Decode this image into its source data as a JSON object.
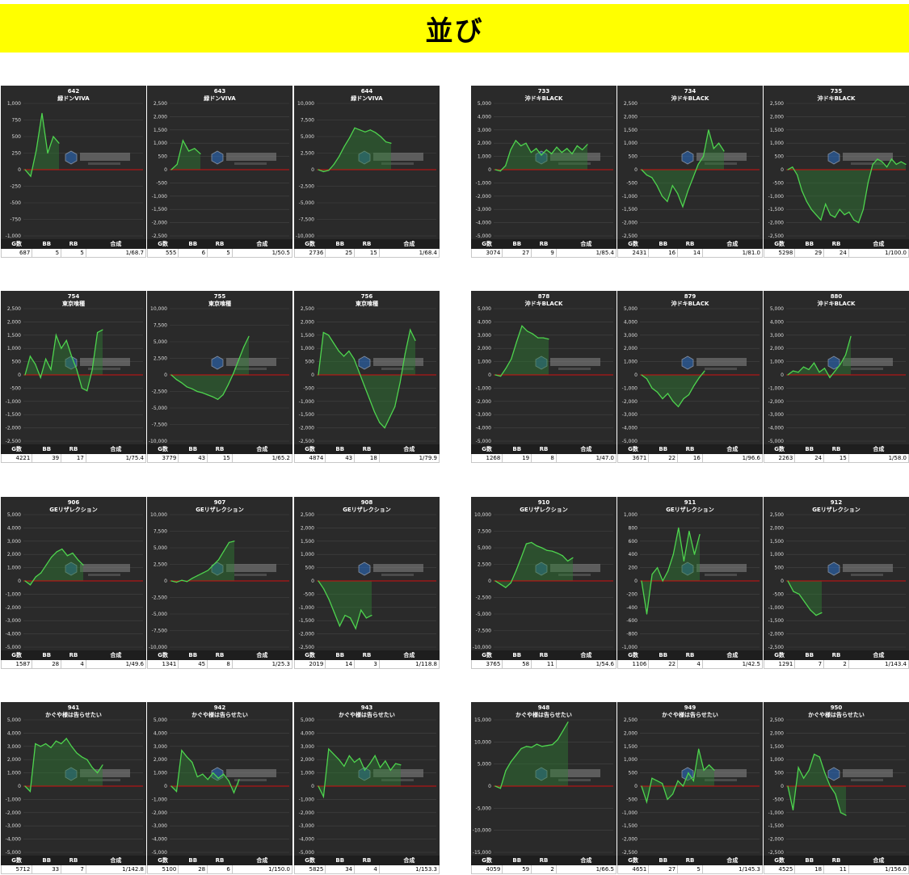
{
  "page": {
    "title": "並び"
  },
  "stat_headers": [
    "G数",
    "BB",
    "RB",
    "合成"
  ],
  "chart_data": [
    {
      "id": "642",
      "machine": "緑ドンVIVA",
      "type": "area",
      "ylim": [
        -1000,
        1000
      ],
      "ticks": [
        -1000,
        -750,
        -500,
        -250,
        0,
        250,
        500,
        750,
        1000
      ],
      "values": [
        0,
        -100,
        300,
        850,
        250,
        500,
        400
      ],
      "stats": [
        "687",
        "5",
        "5",
        "1/68.7"
      ]
    },
    {
      "id": "643",
      "machine": "緑ドンVIVA",
      "type": "area",
      "ylim": [
        -2500,
        2500
      ],
      "ticks": [
        -2500,
        -2000,
        -1500,
        -1000,
        -500,
        0,
        500,
        1000,
        1500,
        2000,
        2500
      ],
      "values": [
        0,
        200,
        1100,
        700,
        800,
        600
      ],
      "stats": [
        "555",
        "6",
        "5",
        "1/50.5"
      ]
    },
    {
      "id": "644",
      "machine": "緑ドンVIVA",
      "type": "area",
      "ylim": [
        -10000,
        10000
      ],
      "ticks": [
        -10000,
        -7500,
        -5000,
        -2500,
        0,
        2500,
        5000,
        7500,
        10000
      ],
      "values": [
        0,
        -300,
        -100,
        800,
        2000,
        3500,
        4800,
        6300,
        6000,
        5700,
        6000,
        5600,
        5000,
        4200,
        4000
      ],
      "stats": [
        "2736",
        "25",
        "15",
        "1/68.4"
      ]
    },
    {
      "id": "733",
      "machine": "沖ドキBLACK",
      "type": "area",
      "ylim": [
        -5000,
        5000
      ],
      "ticks": [
        -5000,
        -4000,
        -3000,
        -2000,
        -1000,
        0,
        1000,
        2000,
        3000,
        4000,
        5000
      ],
      "values": [
        0,
        -100,
        300,
        1500,
        2200,
        1800,
        2000,
        1300,
        1600,
        1100,
        1500,
        1200,
        1700,
        1300,
        1600,
        1200,
        1800,
        1500,
        1900
      ],
      "stats": [
        "3074",
        "27",
        "9",
        "1/85.4"
      ]
    },
    {
      "id": "734",
      "machine": "沖ドキBLACK",
      "type": "area",
      "ylim": [
        -2500,
        2500
      ],
      "ticks": [
        -2500,
        -2000,
        -1500,
        -1000,
        -500,
        0,
        500,
        1000,
        1500,
        2000,
        2500
      ],
      "values": [
        0,
        -200,
        -300,
        -600,
        -1000,
        -1200,
        -600,
        -900,
        -1400,
        -800,
        -300,
        200,
        500,
        1500,
        800,
        1000,
        700
      ],
      "stats": [
        "2431",
        "16",
        "14",
        "1/81.0"
      ]
    },
    {
      "id": "735",
      "machine": "沖ドキBLACK",
      "type": "area",
      "ylim": [
        -2500,
        2500
      ],
      "ticks": [
        -2500,
        -2000,
        -1500,
        -1000,
        -500,
        0,
        500,
        1000,
        1500,
        2000,
        2500
      ],
      "values": [
        0,
        100,
        -200,
        -800,
        -1200,
        -1500,
        -1700,
        -1900,
        -1300,
        -1700,
        -1800,
        -1500,
        -1700,
        -1600,
        -1900,
        -2000,
        -1500,
        -500,
        200,
        400,
        300,
        100,
        400,
        200,
        300,
        200
      ],
      "stats": [
        "5298",
        "29",
        "24",
        "1/100.0"
      ]
    },
    {
      "id": "754",
      "machine": "東京喰種",
      "type": "area",
      "ylim": [
        -2500,
        2500
      ],
      "ticks": [
        -2500,
        -2000,
        -1500,
        -1000,
        -500,
        0,
        500,
        1000,
        1500,
        2000,
        2500
      ],
      "values": [
        0,
        700,
        400,
        -100,
        600,
        200,
        1500,
        1000,
        1300,
        700,
        200,
        -500,
        -600,
        200,
        1600,
        1700
      ],
      "stats": [
        "4221",
        "39",
        "17",
        "1/75.4"
      ]
    },
    {
      "id": "755",
      "machine": "東京喰種",
      "type": "area",
      "ylim": [
        -10000,
        10000
      ],
      "ticks": [
        -10000,
        -7500,
        -5000,
        -2500,
        0,
        2500,
        5000,
        7500,
        10000
      ],
      "values": [
        0,
        -700,
        -1200,
        -1800,
        -2100,
        -2500,
        -2700,
        -3000,
        -3300,
        -3700,
        -3000,
        -1500,
        200,
        2200,
        4200,
        5800
      ],
      "stats": [
        "3779",
        "43",
        "15",
        "1/65.2"
      ]
    },
    {
      "id": "756",
      "machine": "東京喰種",
      "type": "area",
      "ylim": [
        -2500,
        2500
      ],
      "ticks": [
        -2500,
        -2000,
        -1500,
        -1000,
        -500,
        0,
        500,
        1000,
        1500,
        2000,
        2500
      ],
      "values": [
        0,
        1600,
        1500,
        1200,
        900,
        700,
        900,
        600,
        100,
        -400,
        -900,
        -1400,
        -1800,
        -2000,
        -1600,
        -1200,
        -300,
        800,
        1700,
        1300
      ],
      "stats": [
        "4874",
        "43",
        "18",
        "1/79.9"
      ]
    },
    {
      "id": "878",
      "machine": "沖ドキBLACK",
      "type": "area",
      "ylim": [
        -5000,
        5000
      ],
      "ticks": [
        -5000,
        -4000,
        -3000,
        -2000,
        -1000,
        0,
        1000,
        2000,
        3000,
        4000,
        5000
      ],
      "values": [
        0,
        -100,
        500,
        1200,
        2500,
        3700,
        3300,
        3100,
        2800,
        2800,
        2700
      ],
      "stats": [
        "1268",
        "19",
        "8",
        "1/47.0"
      ]
    },
    {
      "id": "879",
      "machine": "沖ドキBLACK",
      "type": "area",
      "ylim": [
        -5000,
        5000
      ],
      "ticks": [
        -5000,
        -4000,
        -3000,
        -2000,
        -1000,
        0,
        1000,
        2000,
        3000,
        4000,
        5000
      ],
      "values": [
        0,
        -300,
        -1000,
        -1300,
        -1800,
        -1400,
        -2000,
        -2400,
        -1800,
        -1500,
        -800,
        -200,
        300
      ],
      "stats": [
        "3671",
        "22",
        "16",
        "1/96.6"
      ]
    },
    {
      "id": "880",
      "machine": "沖ドキBLACK",
      "type": "area",
      "ylim": [
        -5000,
        5000
      ],
      "ticks": [
        -5000,
        -4000,
        -3000,
        -2000,
        -1000,
        0,
        1000,
        2000,
        3000,
        4000,
        5000
      ],
      "values": [
        0,
        300,
        200,
        600,
        400,
        900,
        200,
        500,
        -200,
        300,
        800,
        1500,
        2900
      ],
      "stats": [
        "2263",
        "24",
        "15",
        "1/58.0"
      ]
    },
    {
      "id": "906",
      "machine": "GEリザレクション",
      "type": "area",
      "ylim": [
        -5000,
        5000
      ],
      "ticks": [
        -5000,
        -4000,
        -3000,
        -2000,
        -1000,
        0,
        1000,
        2000,
        3000,
        4000,
        5000
      ],
      "values": [
        0,
        -300,
        300,
        600,
        1200,
        1800,
        2200,
        2400,
        1900,
        2100,
        1600,
        1200
      ],
      "stats": [
        "1587",
        "28",
        "4",
        "1/49.6"
      ]
    },
    {
      "id": "907",
      "machine": "GEリザレクション",
      "type": "area",
      "ylim": [
        -10000,
        10000
      ],
      "ticks": [
        -10000,
        -7500,
        -5000,
        -2500,
        0,
        2500,
        5000,
        7500,
        10000
      ],
      "values": [
        0,
        -200,
        100,
        -100,
        400,
        800,
        1200,
        1600,
        2400,
        3200,
        4500,
        5800,
        6000
      ],
      "stats": [
        "1341",
        "45",
        "8",
        "1/25.3"
      ]
    },
    {
      "id": "908",
      "machine": "GEリザレクション",
      "type": "area",
      "ylim": [
        -2500,
        2500
      ],
      "ticks": [
        -2500,
        -2000,
        -1500,
        -1000,
        -500,
        0,
        500,
        1000,
        1500,
        2000,
        2500
      ],
      "values": [
        0,
        -300,
        -700,
        -1200,
        -1700,
        -1300,
        -1400,
        -1800,
        -1100,
        -1400,
        -1300
      ],
      "stats": [
        "2019",
        "14",
        "3",
        "1/118.8"
      ]
    },
    {
      "id": "910",
      "machine": "GEリザレクション",
      "type": "area",
      "ylim": [
        -10000,
        10000
      ],
      "ticks": [
        -10000,
        -7500,
        -5000,
        -2500,
        0,
        2500,
        5000,
        7500,
        10000
      ],
      "values": [
        0,
        -500,
        -1000,
        -300,
        1500,
        3500,
        5600,
        5800,
        5300,
        5000,
        4600,
        4500,
        4200,
        3800,
        3000,
        3500
      ],
      "stats": [
        "3765",
        "58",
        "11",
        "1/54.6"
      ]
    },
    {
      "id": "911",
      "machine": "GEリザレクション",
      "type": "area",
      "ylim": [
        -1000,
        1000
      ],
      "ticks": [
        -1000,
        -800,
        -600,
        -400,
        -200,
        0,
        200,
        400,
        600,
        800,
        1000
      ],
      "values": [
        0,
        -500,
        100,
        200,
        0,
        150,
        400,
        800,
        300,
        750,
        400,
        700
      ],
      "stats": [
        "1106",
        "22",
        "4",
        "1/42.5"
      ]
    },
    {
      "id": "912",
      "machine": "GEリザレクション",
      "type": "area",
      "ylim": [
        -2500,
        2500
      ],
      "ticks": [
        -2500,
        -2000,
        -1500,
        -1000,
        -500,
        0,
        500,
        1000,
        1500,
        2000,
        2500
      ],
      "values": [
        0,
        -400,
        -500,
        -800,
        -1100,
        -1300,
        -1200
      ],
      "stats": [
        "1291",
        "7",
        "2",
        "1/143.4"
      ]
    },
    {
      "id": "941",
      "machine": "かぐや様は告らせたい",
      "type": "area",
      "ylim": [
        -5000,
        5000
      ],
      "ticks": [
        -5000,
        -4000,
        -3000,
        -2000,
        -1000,
        0,
        1000,
        2000,
        3000,
        4000,
        5000
      ],
      "values": [
        0,
        -400,
        3200,
        3000,
        3200,
        2900,
        3400,
        3200,
        3600,
        3000,
        2500,
        2200,
        2000,
        1400,
        1000,
        1600
      ],
      "stats": [
        "5712",
        "33",
        "7",
        "1/142.8"
      ]
    },
    {
      "id": "942",
      "machine": "かぐや様は告らせたい",
      "type": "area",
      "ylim": [
        -5000,
        5000
      ],
      "ticks": [
        -5000,
        -4000,
        -3000,
        -2000,
        -1000,
        0,
        1000,
        2000,
        3000,
        4000,
        5000
      ],
      "values": [
        0,
        -400,
        2700,
        2200,
        1800,
        700,
        900,
        500,
        1000,
        600,
        900,
        400,
        -500,
        500
      ],
      "stats": [
        "5100",
        "28",
        "6",
        "1/150.0"
      ]
    },
    {
      "id": "943",
      "machine": "かぐや様は告らせたい",
      "type": "area",
      "ylim": [
        -5000,
        5000
      ],
      "ticks": [
        -5000,
        -4000,
        -3000,
        -2000,
        -1000,
        0,
        1000,
        2000,
        3000,
        4000,
        5000
      ],
      "values": [
        0,
        -800,
        2800,
        2400,
        2000,
        1500,
        2300,
        1800,
        2100,
        1200,
        1700,
        2300,
        1400,
        1900,
        1200,
        1700,
        1600
      ],
      "stats": [
        "5825",
        "34",
        "4",
        "1/153.3"
      ]
    },
    {
      "id": "948",
      "machine": "かぐや様は告らせたい",
      "type": "area",
      "ylim": [
        -15000,
        15000
      ],
      "ticks": [
        -15000,
        -10000,
        -5000,
        0,
        5000,
        10000,
        15000
      ],
      "values": [
        0,
        -500,
        3500,
        5500,
        7000,
        8500,
        9000,
        8800,
        9500,
        9000,
        9200,
        9400,
        10500,
        12500,
        14500
      ],
      "stats": [
        "4059",
        "59",
        "2",
        "1/66.5"
      ]
    },
    {
      "id": "949",
      "machine": "かぐや様は告らせたい",
      "type": "area",
      "ylim": [
        -2500,
        2500
      ],
      "ticks": [
        -2500,
        -2000,
        -1500,
        -1000,
        -500,
        0,
        500,
        1000,
        1500,
        2000,
        2500
      ],
      "values": [
        0,
        -600,
        300,
        200,
        100,
        -500,
        -300,
        200,
        0,
        500,
        200,
        1400,
        600,
        800,
        600
      ],
      "stats": [
        "4651",
        "27",
        "5",
        "1/145.3"
      ]
    },
    {
      "id": "950",
      "machine": "かぐや様は告らせたい",
      "type": "area",
      "ylim": [
        -2500,
        2500
      ],
      "ticks": [
        -2500,
        -2000,
        -1500,
        -1000,
        -500,
        0,
        500,
        1000,
        1500,
        2000,
        2500
      ],
      "values": [
        0,
        -900,
        700,
        300,
        600,
        1200,
        1100,
        500,
        0,
        -300,
        -1000,
        -1100
      ],
      "stats": [
        "4525",
        "18",
        "11",
        "1/156.0"
      ]
    }
  ]
}
